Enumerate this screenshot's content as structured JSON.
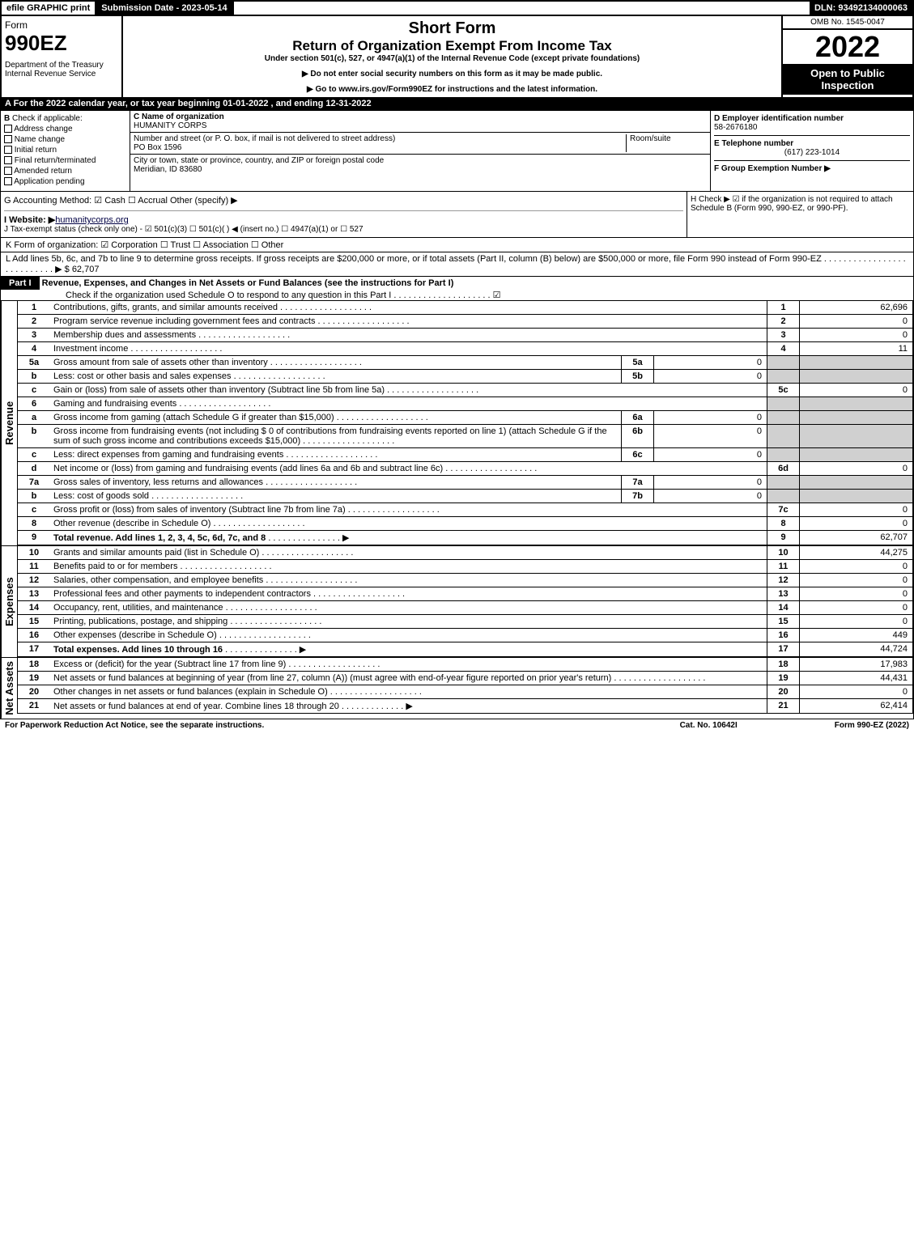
{
  "top": {
    "efile": "efile GRAPHIC print",
    "subdate": "Submission Date - 2023-05-14",
    "dln": "DLN: 93492134000063"
  },
  "header": {
    "form_word": "Form",
    "form_num": "990EZ",
    "dept": "Department of the Treasury\nInternal Revenue Service",
    "title1": "Short Form",
    "title2": "Return of Organization Exempt From Income Tax",
    "subtitle": "Under section 501(c), 527, or 4947(a)(1) of the Internal Revenue Code (except private foundations)",
    "warn": "▶ Do not enter social security numbers on this form as it may be made public.",
    "goto": "▶ Go to www.irs.gov/Form990EZ for instructions and the latest information.",
    "omb": "OMB No. 1545-0047",
    "year": "2022",
    "inspection": "Open to Public Inspection"
  },
  "rowA": "A  For the 2022 calendar year, or tax year beginning 01-01-2022 , and ending 12-31-2022",
  "B": {
    "label": "Check if applicable:",
    "opts": [
      "Address change",
      "Name change",
      "Initial return",
      "Final return/terminated",
      "Amended return",
      "Application pending"
    ]
  },
  "C": {
    "name_lbl": "C Name of organization",
    "name": "HUMANITY CORPS",
    "street_lbl": "Number and street (or P. O. box, if mail is not delivered to street address)",
    "street": "PO Box 1596",
    "room_lbl": "Room/suite",
    "city_lbl": "City or town, state or province, country, and ZIP or foreign postal code",
    "city": "Meridian, ID  83680"
  },
  "D": {
    "ein_lbl": "D Employer identification number",
    "ein": "58-2676180",
    "tel_lbl": "E Telephone number",
    "tel": "(617) 223-1014",
    "grp_lbl": "F Group Exemption Number  ▶"
  },
  "G": "G Accounting Method:   ☑ Cash  ☐ Accrual   Other (specify) ▶",
  "H": "H   Check ▶  ☑  if the organization is not required to attach Schedule B (Form 990, 990-EZ, or 990-PF).",
  "I": "I Website: ▶",
  "I_site": "humanitycorps.org",
  "J": "J Tax-exempt status (check only one) - ☑ 501(c)(3) ☐ 501(c)( ) ◀ (insert no.) ☐ 4947(a)(1) or ☐ 527",
  "K": "K Form of organization:   ☑ Corporation  ☐ Trust  ☐ Association  ☐ Other",
  "L": "L Add lines 5b, 6c, and 7b to line 9 to determine gross receipts. If gross receipts are $200,000 or more, or if total assets (Part II, column (B) below) are $500,000 or more, file Form 990 instead of Form 990-EZ  .  .  .  .  .  .  .  .  .  .  .  .  .  .  .  .  .  .  .  .  .  .  .  .  .  .  .  ▶ $ 62,707",
  "partI": {
    "title": "Part I",
    "desc": "Revenue, Expenses, and Changes in Net Assets or Fund Balances (see the instructions for Part I)",
    "check": "Check if the organization used Schedule O to respond to any question in this Part I .  .  .  .  .  .  .  .  .  .  .  .  .  .  .  .  .  .  .  .  ☑"
  },
  "revenue": [
    {
      "n": "1",
      "d": "Contributions, gifts, grants, and similar amounts received",
      "rn": "1",
      "rv": "62,696"
    },
    {
      "n": "2",
      "d": "Program service revenue including government fees and contracts",
      "rn": "2",
      "rv": "0"
    },
    {
      "n": "3",
      "d": "Membership dues and assessments",
      "rn": "3",
      "rv": "0"
    },
    {
      "n": "4",
      "d": "Investment income",
      "rn": "4",
      "rv": "11"
    },
    {
      "n": "5a",
      "d": "Gross amount from sale of assets other than inventory",
      "sn": "5a",
      "sv": "0"
    },
    {
      "n": "b",
      "d": "Less: cost or other basis and sales expenses",
      "sn": "5b",
      "sv": "0"
    },
    {
      "n": "c",
      "d": "Gain or (loss) from sale of assets other than inventory (Subtract line 5b from line 5a)",
      "rn": "5c",
      "rv": "0"
    },
    {
      "n": "6",
      "d": "Gaming and fundraising events"
    },
    {
      "n": "a",
      "d": "Gross income from gaming (attach Schedule G if greater than $15,000)",
      "sn": "6a",
      "sv": "0"
    },
    {
      "n": "b",
      "d": "Gross income from fundraising events (not including $ 0 of contributions from fundraising events reported on line 1) (attach Schedule G if the sum of such gross income and contributions exceeds $15,000)",
      "sn": "6b",
      "sv": "0"
    },
    {
      "n": "c",
      "d": "Less: direct expenses from gaming and fundraising events",
      "sn": "6c",
      "sv": "0"
    },
    {
      "n": "d",
      "d": "Net income or (loss) from gaming and fundraising events (add lines 6a and 6b and subtract line 6c)",
      "rn": "6d",
      "rv": "0"
    },
    {
      "n": "7a",
      "d": "Gross sales of inventory, less returns and allowances",
      "sn": "7a",
      "sv": "0"
    },
    {
      "n": "b",
      "d": "Less: cost of goods sold",
      "sn": "7b",
      "sv": "0"
    },
    {
      "n": "c",
      "d": "Gross profit or (loss) from sales of inventory (Subtract line 7b from line 7a)",
      "rn": "7c",
      "rv": "0"
    },
    {
      "n": "8",
      "d": "Other revenue (describe in Schedule O)",
      "rn": "8",
      "rv": "0"
    },
    {
      "n": "9",
      "d": "Total revenue. Add lines 1, 2, 3, 4, 5c, 6d, 7c, and 8",
      "rn": "9",
      "rv": "62,707",
      "bold": true,
      "arrow": true
    }
  ],
  "expenses": [
    {
      "n": "10",
      "d": "Grants and similar amounts paid (list in Schedule O)",
      "rn": "10",
      "rv": "44,275"
    },
    {
      "n": "11",
      "d": "Benefits paid to or for members",
      "rn": "11",
      "rv": "0"
    },
    {
      "n": "12",
      "d": "Salaries, other compensation, and employee benefits",
      "rn": "12",
      "rv": "0"
    },
    {
      "n": "13",
      "d": "Professional fees and other payments to independent contractors",
      "rn": "13",
      "rv": "0"
    },
    {
      "n": "14",
      "d": "Occupancy, rent, utilities, and maintenance",
      "rn": "14",
      "rv": "0"
    },
    {
      "n": "15",
      "d": "Printing, publications, postage, and shipping",
      "rn": "15",
      "rv": "0"
    },
    {
      "n": "16",
      "d": "Other expenses (describe in Schedule O)",
      "rn": "16",
      "rv": "449"
    },
    {
      "n": "17",
      "d": "Total expenses. Add lines 10 through 16",
      "rn": "17",
      "rv": "44,724",
      "bold": true,
      "arrow": true
    }
  ],
  "netassets": [
    {
      "n": "18",
      "d": "Excess or (deficit) for the year (Subtract line 17 from line 9)",
      "rn": "18",
      "rv": "17,983"
    },
    {
      "n": "19",
      "d": "Net assets or fund balances at beginning of year (from line 27, column (A)) (must agree with end-of-year figure reported on prior year's return)",
      "rn": "19",
      "rv": "44,431"
    },
    {
      "n": "20",
      "d": "Other changes in net assets or fund balances (explain in Schedule O)",
      "rn": "20",
      "rv": "0"
    },
    {
      "n": "21",
      "d": "Net assets or fund balances at end of year. Combine lines 18 through 20",
      "rn": "21",
      "rv": "62,414",
      "arrow": true
    }
  ],
  "labels": {
    "revenue": "Revenue",
    "expenses": "Expenses",
    "netassets": "Net Assets"
  },
  "footer": {
    "left": "For Paperwork Reduction Act Notice, see the separate instructions.",
    "mid": "Cat. No. 10642I",
    "right": "Form 990-EZ (2022)"
  }
}
